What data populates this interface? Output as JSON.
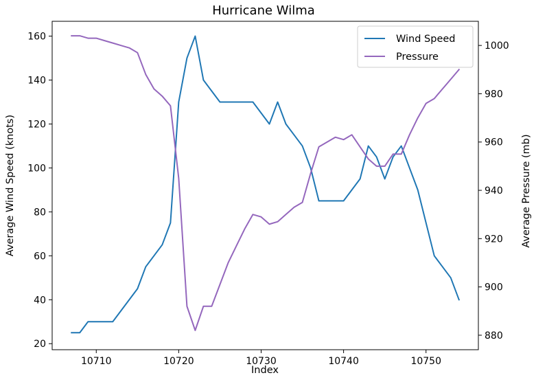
{
  "chart_data": {
    "type": "line",
    "title": "Hurricane Wilma",
    "xlabel": "Index",
    "ylabel_left": "Average Wind Speed (knots)",
    "ylabel_right": "Average Pressure (mb)",
    "xlim": [
      10704.65,
      10756.35
    ],
    "ylim_left": [
      17.25,
      166.75
    ],
    "ylim_right": [
      874.0,
      1010.0
    ],
    "x_ticks": [
      10710,
      10720,
      10730,
      10740,
      10750
    ],
    "y_left_ticks": [
      20,
      40,
      60,
      80,
      100,
      120,
      140,
      160
    ],
    "y_right_ticks": [
      880,
      900,
      920,
      940,
      960,
      980,
      1000
    ],
    "grid": false,
    "legend_position": "top-right",
    "series": [
      {
        "name": "Wind Speed",
        "axis": "left",
        "color": "#1f77b4",
        "x": [
          10707,
          10708,
          10709,
          10710,
          10711,
          10712,
          10713,
          10714,
          10715,
          10716,
          10717,
          10718,
          10719,
          10720,
          10721,
          10722,
          10723,
          10724,
          10725,
          10726,
          10727,
          10728,
          10729,
          10730,
          10731,
          10732,
          10733,
          10734,
          10735,
          10736,
          10737,
          10738,
          10739,
          10740,
          10741,
          10742,
          10743,
          10744,
          10745,
          10746,
          10747,
          10748,
          10749,
          10750,
          10751,
          10752,
          10753,
          10754
        ],
        "values": [
          25,
          25,
          30,
          30,
          30,
          30,
          35,
          40,
          45,
          55,
          60,
          65,
          75,
          130,
          150,
          160,
          140,
          135,
          130,
          130,
          130,
          130,
          130,
          125,
          120,
          130,
          120,
          115,
          110,
          100,
          85,
          85,
          85,
          85,
          90,
          95,
          110,
          105,
          95,
          105,
          110,
          100,
          90,
          75,
          60,
          55,
          50,
          40
        ]
      },
      {
        "name": "Pressure",
        "axis": "right",
        "color": "#9467bd",
        "x": [
          10707,
          10708,
          10709,
          10710,
          10711,
          10712,
          10713,
          10714,
          10715,
          10716,
          10717,
          10718,
          10719,
          10720,
          10721,
          10722,
          10723,
          10724,
          10725,
          10726,
          10727,
          10728,
          10729,
          10730,
          10731,
          10732,
          10733,
          10734,
          10735,
          10736,
          10737,
          10738,
          10739,
          10740,
          10741,
          10742,
          10743,
          10744,
          10745,
          10746,
          10747,
          10748,
          10749,
          10750,
          10751,
          10752,
          10753,
          10754
        ],
        "values": [
          1004,
          1004,
          1003,
          1003,
          1002,
          1001,
          1000,
          999,
          997,
          988,
          982,
          979,
          975,
          945,
          892,
          882,
          892,
          892,
          901,
          910,
          917,
          924,
          930,
          929,
          926,
          927,
          930,
          933,
          935,
          947,
          958,
          960,
          962,
          961,
          963,
          958,
          953,
          950,
          950,
          955,
          955,
          963,
          970,
          976,
          978,
          982,
          986,
          990
        ]
      }
    ]
  }
}
